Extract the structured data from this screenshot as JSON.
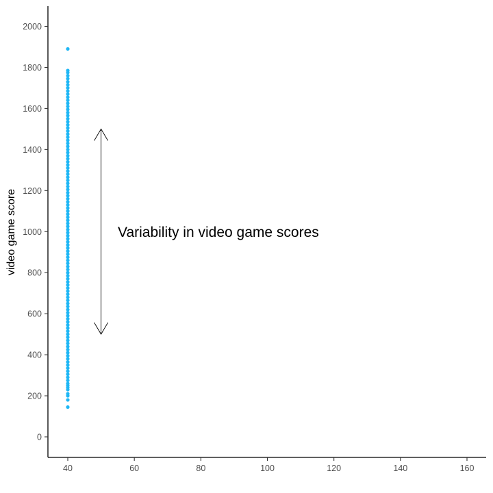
{
  "chart_data": {
    "type": "scatter",
    "title": "",
    "xlabel": "",
    "ylabel": "video game score",
    "xlim": [
      34,
      166
    ],
    "ylim": [
      -100,
      2100
    ],
    "x_ticks": [
      40,
      60,
      80,
      100,
      120,
      140,
      160
    ],
    "y_ticks": [
      0,
      200,
      400,
      600,
      800,
      1000,
      1200,
      1400,
      1600,
      1800,
      2000
    ],
    "grid": false,
    "legend": "none",
    "point_color": "#1FB7F5",
    "series": [
      {
        "x": 40,
        "y": [
          145,
          180,
          200,
          210,
          230,
          240,
          250,
          260,
          275,
          290,
          305,
          320,
          335,
          350,
          365,
          380,
          395,
          410,
          425,
          440,
          455,
          470,
          485,
          500,
          515,
          530,
          545,
          560,
          575,
          590,
          605,
          620,
          635,
          650,
          665,
          680,
          695,
          710,
          725,
          740,
          755,
          770,
          785,
          800,
          815,
          830,
          845,
          860,
          875,
          890,
          905,
          920,
          935,
          950,
          965,
          980,
          995,
          1010,
          1025,
          1040,
          1055,
          1070,
          1085,
          1100,
          1115,
          1130,
          1145,
          1160,
          1175,
          1190,
          1205,
          1220,
          1235,
          1250,
          1265,
          1280,
          1295,
          1310,
          1325,
          1340,
          1355,
          1370,
          1385,
          1400,
          1415,
          1430,
          1445,
          1460,
          1475,
          1490,
          1505,
          1520,
          1535,
          1550,
          1565,
          1580,
          1595,
          1610,
          1625,
          1640,
          1655,
          1670,
          1685,
          1700,
          1715,
          1730,
          1745,
          1760,
          1775,
          1785,
          1890
        ]
      }
    ],
    "annotations": [
      {
        "text": "Variability in video game scores",
        "x": 55,
        "y": 1000
      }
    ],
    "arrows": [
      {
        "x": 50,
        "y_start": 500,
        "y_end": 1500,
        "double_headed": true
      }
    ]
  }
}
